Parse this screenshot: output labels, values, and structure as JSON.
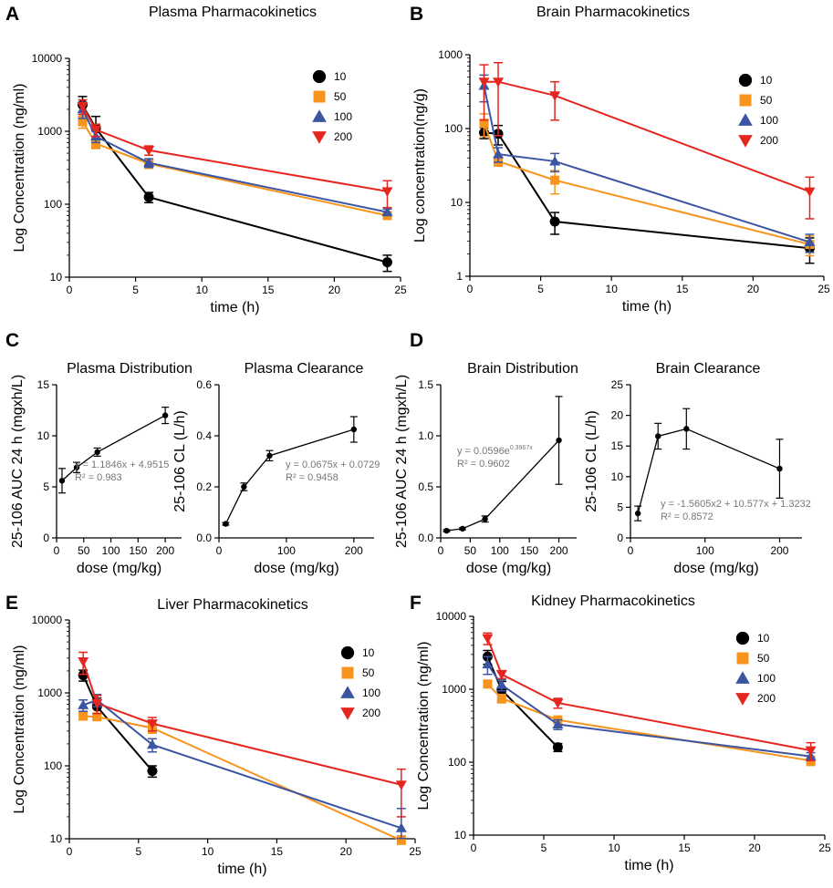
{
  "panel_letters": [
    "A",
    "B",
    "C",
    "D",
    "E",
    "F"
  ],
  "colors": {
    "10": "#000000",
    "50": "#F7941D",
    "100": "#3B55A3",
    "200": "#E5261F"
  },
  "chart_data": [
    {
      "id": "A",
      "type": "line",
      "scale": "log",
      "title": "Plasma Pharmacokinetics",
      "xlabel": "time (h)",
      "ylabel": "Log Concentration (ng/ml)",
      "xlim": [
        0,
        25
      ],
      "ylim": [
        10,
        10000
      ],
      "xticks": [
        "0",
        "5",
        "10",
        "15",
        "20",
        "25"
      ],
      "yticks": [
        "10",
        "100",
        "1000",
        "10000"
      ],
      "legend_title": "",
      "legend_entries": [
        "10",
        "50",
        "100",
        "200"
      ],
      "series": [
        {
          "name": "10",
          "marker": "circle",
          "x": [
            1,
            2,
            6,
            24
          ],
          "y": [
            2300,
            1100,
            125,
            16
          ],
          "err": [
            700,
            500,
            20,
            4
          ]
        },
        {
          "name": "50",
          "marker": "square",
          "x": [
            1,
            2,
            6,
            24
          ],
          "y": [
            1350,
            680,
            360,
            70
          ],
          "err": [
            250,
            100,
            50,
            8
          ]
        },
        {
          "name": "100",
          "marker": "triangle-up",
          "x": [
            1,
            2,
            6,
            24
          ],
          "y": [
            2000,
            850,
            370,
            78
          ],
          "err": [
            500,
            150,
            50,
            8
          ]
        },
        {
          "name": "200",
          "marker": "triangle-down",
          "x": [
            1,
            2,
            6,
            24
          ],
          "y": [
            2200,
            1050,
            550,
            150
          ],
          "err": [
            500,
            200,
            80,
            60
          ]
        }
      ]
    },
    {
      "id": "B",
      "type": "line",
      "scale": "log",
      "title": "Brain Pharmacokinetics",
      "xlabel": "time (h)",
      "ylabel": "Log concentration(ng/g)",
      "xlim": [
        0,
        25
      ],
      "ylim": [
        1,
        1000
      ],
      "xticks": [
        "0",
        "5",
        "10",
        "15",
        "20",
        "25"
      ],
      "yticks": [
        "1",
        "10",
        "100",
        "1000"
      ],
      "legend_entries": [
        "10",
        "50",
        "100",
        "200"
      ],
      "series": [
        {
          "name": "10",
          "marker": "circle",
          "x": [
            1,
            2,
            6,
            24
          ],
          "y": [
            88,
            85,
            5.5,
            2.4
          ],
          "err": [
            15,
            25,
            1.8,
            0.9
          ]
        },
        {
          "name": "50",
          "marker": "square",
          "x": [
            1,
            2,
            6,
            24
          ],
          "y": [
            118,
            36,
            20,
            2.7
          ],
          "err": [
            40,
            5,
            7,
            0.8
          ]
        },
        {
          "name": "100",
          "marker": "triangle-up",
          "x": [
            1,
            2,
            6,
            24
          ],
          "y": [
            380,
            45,
            36,
            2.9
          ],
          "err": [
            150,
            10,
            10,
            0.8
          ]
        },
        {
          "name": "200",
          "marker": "triangle-down",
          "x": [
            1,
            2,
            6,
            24
          ],
          "y": [
            430,
            430,
            280,
            14
          ],
          "err": [
            300,
            350,
            150,
            8
          ]
        }
      ]
    },
    {
      "id": "C1",
      "type": "line",
      "title": "Plasma Distribution",
      "xlabel": "dose (mg/kg)",
      "ylabel": "25-106 AUC 24 h (mgxh/L)",
      "xlim": [
        0,
        230
      ],
      "ylim": [
        0,
        15
      ],
      "xticks": [
        "0",
        "50",
        "100",
        "150",
        "200"
      ],
      "yticks": [
        "0",
        "5",
        "10",
        "15"
      ],
      "equation": "y = 1.1846x + 4.9515",
      "r2": "R² = 0.983",
      "series": [
        {
          "name": "25-106",
          "x": [
            10,
            37,
            75,
            200
          ],
          "y": [
            5.6,
            6.9,
            8.4,
            12.0
          ],
          "err": [
            1.2,
            0.5,
            0.4,
            0.8
          ]
        }
      ]
    },
    {
      "id": "C2",
      "type": "line",
      "title": "Plasma Clearance",
      "xlabel": "dose (mg/kg)",
      "ylabel": "25-106 CL  (L/h)",
      "xlim": [
        0,
        230
      ],
      "ylim": [
        0,
        0.6
      ],
      "xticks": [
        "0",
        "100",
        "200"
      ],
      "yticks": [
        "0.0",
        "0.2",
        "0.4",
        "0.6"
      ],
      "equation": "y = 0.0675x + 0.0729",
      "r2": "R² = 0.9458",
      "series": [
        {
          "name": "25-106",
          "x": [
            10,
            37,
            75,
            200
          ],
          "y": [
            0.055,
            0.2,
            0.322,
            0.425
          ],
          "err": [
            0.005,
            0.015,
            0.02,
            0.05
          ]
        }
      ]
    },
    {
      "id": "D1",
      "type": "line",
      "title": "Brain Distribution",
      "xlabel": "dose (mg/kg)",
      "ylabel": "25-106 AUC 24 h (mgxh/L)",
      "xlim": [
        0,
        230
      ],
      "ylim": [
        0,
        1.5
      ],
      "xticks": [
        "0",
        "50",
        "100",
        "150",
        "200"
      ],
      "yticks": [
        "0.0",
        "0.5",
        "1.0",
        "1.5"
      ],
      "equation": "y = 0.0596e",
      "equation_exp": "0.3967x",
      "r2": "R² = 0.9602",
      "series": [
        {
          "name": "25-106",
          "x": [
            10,
            37,
            75,
            200
          ],
          "y": [
            0.07,
            0.09,
            0.185,
            0.955
          ],
          "err": [
            0.01,
            0.01,
            0.03,
            0.43
          ]
        }
      ]
    },
    {
      "id": "D2",
      "type": "line",
      "title": "Brain Clearance",
      "xlabel": "dose (mg/kg)",
      "ylabel": "25-106 CL  (L/h)",
      "xlim": [
        0,
        230
      ],
      "ylim": [
        0,
        25
      ],
      "xticks": [
        "0",
        "100",
        "200"
      ],
      "yticks": [
        "0",
        "5",
        "10",
        "15",
        "20",
        "25"
      ],
      "equation": "y = -1.5605x2 + 10.577x + 1.3232",
      "r2": "R² = 0.8572",
      "series": [
        {
          "name": "25-106",
          "x": [
            10,
            37,
            75,
            200
          ],
          "y": [
            4.0,
            16.6,
            17.8,
            11.3
          ],
          "err": [
            1.2,
            2.1,
            3.3,
            4.8
          ]
        }
      ]
    },
    {
      "id": "E",
      "type": "line",
      "scale": "log",
      "title": "Liver Pharmacokinetics",
      "xlabel": "time (h)",
      "ylabel": "Log Concentration (ng/ml)",
      "xlim": [
        0,
        25
      ],
      "ylim": [
        10,
        10000
      ],
      "xticks": [
        "0",
        "5",
        "10",
        "15",
        "20",
        "25"
      ],
      "yticks": [
        "10",
        "100",
        "1000",
        "10000"
      ],
      "legend_entries": [
        "10",
        "50",
        "100",
        "200"
      ],
      "series": [
        {
          "name": "10",
          "marker": "circle",
          "x": [
            1,
            2,
            6
          ],
          "y": [
            1750,
            650,
            85
          ],
          "err": [
            300,
            200,
            15
          ]
        },
        {
          "name": "50",
          "marker": "square",
          "x": [
            1,
            2,
            6,
            24
          ],
          "y": [
            480,
            470,
            330,
            9
          ],
          "err": [
            50,
            50,
            50,
            2
          ]
        },
        {
          "name": "100",
          "marker": "triangle-up",
          "x": [
            1,
            2,
            6,
            24
          ],
          "y": [
            680,
            800,
            195,
            14
          ],
          "err": [
            120,
            150,
            40,
            12
          ]
        },
        {
          "name": "200",
          "marker": "triangle-down",
          "x": [
            1,
            2,
            6,
            24
          ],
          "y": [
            2700,
            720,
            380,
            55
          ],
          "err": [
            900,
            200,
            80,
            35
          ]
        }
      ]
    },
    {
      "id": "F",
      "type": "line",
      "scale": "log",
      "title": "Kidney Pharmacokinetics",
      "xlabel": "time (h)",
      "ylabel": "Log Concentration (ng/ml)",
      "xlim": [
        0,
        25
      ],
      "ylim": [
        10,
        10000
      ],
      "xticks": [
        "0",
        "5",
        "10",
        "15",
        "20",
        "25"
      ],
      "yticks": [
        "10",
        "100",
        "1000",
        "10000"
      ],
      "legend_entries": [
        "10",
        "50",
        "100",
        "200"
      ],
      "series": [
        {
          "name": "10",
          "marker": "circle",
          "x": [
            1,
            2,
            6
          ],
          "y": [
            2800,
            980,
            160
          ],
          "err": [
            600,
            300,
            20
          ]
        },
        {
          "name": "50",
          "marker": "square",
          "x": [
            1,
            2,
            6,
            24
          ],
          "y": [
            1180,
            750,
            380,
            105
          ],
          "err": [
            100,
            100,
            40,
            15
          ]
        },
        {
          "name": "100",
          "marker": "triangle-up",
          "x": [
            1,
            2,
            6,
            24
          ],
          "y": [
            2200,
            1150,
            330,
            120
          ],
          "err": [
            600,
            200,
            50,
            15
          ]
        },
        {
          "name": "200",
          "marker": "triangle-down",
          "x": [
            1,
            2,
            6,
            24
          ],
          "y": [
            5000,
            1600,
            650,
            145
          ],
          "err": [
            900,
            200,
            100,
            40
          ]
        }
      ]
    }
  ]
}
